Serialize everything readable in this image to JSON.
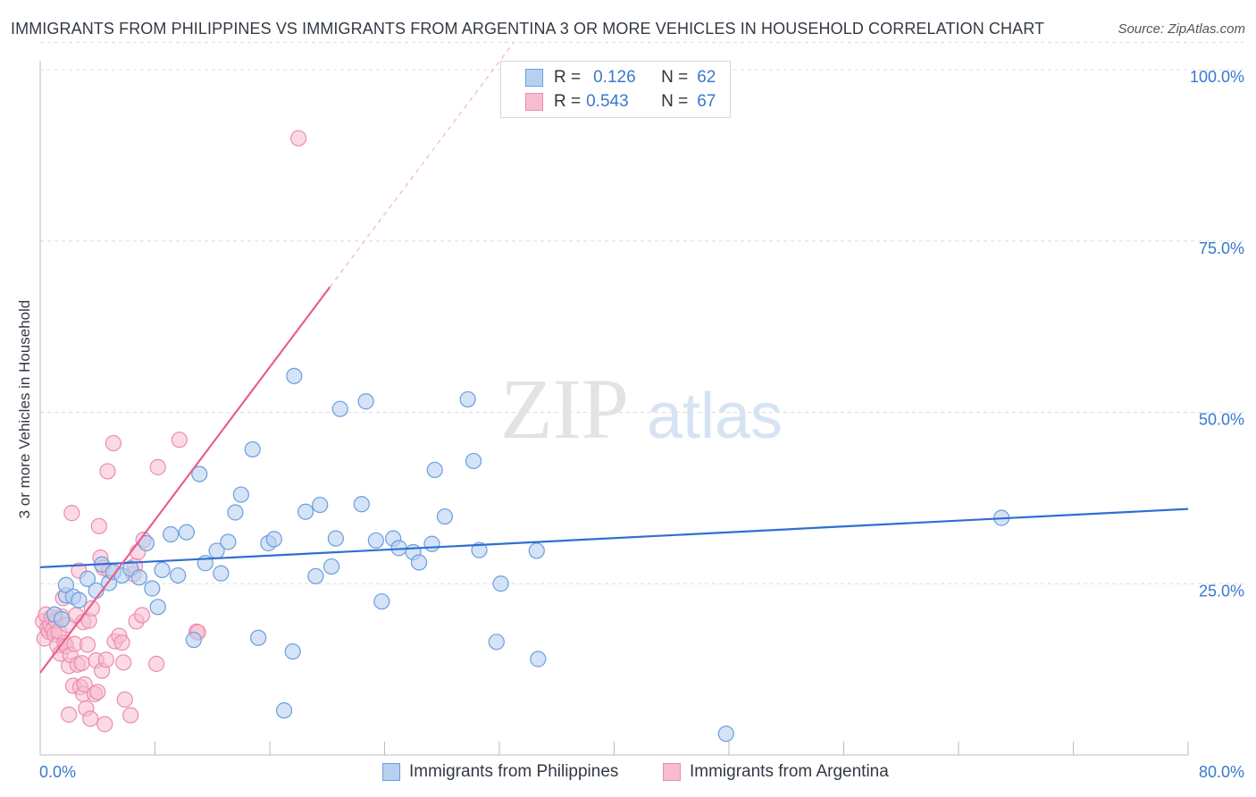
{
  "header": {
    "title": "IMMIGRANTS FROM PHILIPPINES VS IMMIGRANTS FROM ARGENTINA 3 OR MORE VEHICLES IN HOUSEHOLD CORRELATION CHART",
    "source": "Source: ZipAtlas.com"
  },
  "watermark": {
    "zip": "ZIP",
    "atlas": "atlas"
  },
  "legend": {
    "r_label": "R =",
    "n_label": "N =",
    "rows": [
      {
        "r": "0.126",
        "n": "62"
      },
      {
        "r": "0.543",
        "n": "67"
      }
    ]
  },
  "colors": {
    "philippines_fill": "#b8d0f0",
    "philippines_stroke": "#6a9ee0",
    "philippines_line": "#2f6fd0",
    "argentina_fill": "#f7bcd0",
    "argentina_stroke": "#ec8cac",
    "argentina_line": "#e8608c",
    "axis_text": "#3a78cc"
  },
  "chart_data": {
    "type": "scatter",
    "title": "IMMIGRANTS FROM PHILIPPINES VS IMMIGRANTS FROM ARGENTINA 3 OR MORE VEHICLES IN HOUSEHOLD CORRELATION CHART",
    "xlabel": "",
    "ylabel": "3 or more Vehicles in Household",
    "xlim": [
      0,
      80
    ],
    "ylim": [
      0,
      100
    ],
    "x_tick_labels": [
      "0.0%",
      "80.0%"
    ],
    "y_ticks": [
      25,
      50,
      75,
      100
    ],
    "y_tick_labels": [
      "25.0%",
      "50.0%",
      "75.0%",
      "100.0%"
    ],
    "grid": "horizontal dashed",
    "legend_position": "top-center",
    "series": [
      {
        "name": "Immigrants from Philippines",
        "r": 0.126,
        "n": 62,
        "trend": {
          "x0": 0,
          "y0": 27.4,
          "x1": 80,
          "y1": 35.9
        },
        "points": [
          [
            1.0,
            20.5
          ],
          [
            1.5,
            19.8
          ],
          [
            1.8,
            23.3
          ],
          [
            1.8,
            24.8
          ],
          [
            2.3,
            23.1
          ],
          [
            2.7,
            22.6
          ],
          [
            3.3,
            25.7
          ],
          [
            3.9,
            24.0
          ],
          [
            4.3,
            27.8
          ],
          [
            4.8,
            25.1
          ],
          [
            5.1,
            26.7
          ],
          [
            5.7,
            26.2
          ],
          [
            6.3,
            27.2
          ],
          [
            6.9,
            25.9
          ],
          [
            7.4,
            30.9
          ],
          [
            7.8,
            24.3
          ],
          [
            8.2,
            21.6
          ],
          [
            8.5,
            27.0
          ],
          [
            9.1,
            32.2
          ],
          [
            9.6,
            26.2
          ],
          [
            10.2,
            32.5
          ],
          [
            10.7,
            16.8
          ],
          [
            11.1,
            41.0
          ],
          [
            11.5,
            28.0
          ],
          [
            12.3,
            29.8
          ],
          [
            12.6,
            26.5
          ],
          [
            13.1,
            31.1
          ],
          [
            13.6,
            35.4
          ],
          [
            14.0,
            38.0
          ],
          [
            14.8,
            44.6
          ],
          [
            15.2,
            17.1
          ],
          [
            15.9,
            30.9
          ],
          [
            16.3,
            31.5
          ],
          [
            17.0,
            6.5
          ],
          [
            17.6,
            15.1
          ],
          [
            17.7,
            55.3
          ],
          [
            18.5,
            35.5
          ],
          [
            19.2,
            26.1
          ],
          [
            19.5,
            36.5
          ],
          [
            20.3,
            27.5
          ],
          [
            20.6,
            31.6
          ],
          [
            20.9,
            50.5
          ],
          [
            22.4,
            36.6
          ],
          [
            22.7,
            51.6
          ],
          [
            23.4,
            31.3
          ],
          [
            23.8,
            22.4
          ],
          [
            24.6,
            31.6
          ],
          [
            25.0,
            30.2
          ],
          [
            26.0,
            29.6
          ],
          [
            26.4,
            28.1
          ],
          [
            27.3,
            30.8
          ],
          [
            27.5,
            41.6
          ],
          [
            28.2,
            34.8
          ],
          [
            29.8,
            51.9
          ],
          [
            30.2,
            42.9
          ],
          [
            30.6,
            29.9
          ],
          [
            31.8,
            16.5
          ],
          [
            32.1,
            25.0
          ],
          [
            34.6,
            29.8
          ],
          [
            34.7,
            14.0
          ],
          [
            47.8,
            3.1
          ],
          [
            67.0,
            34.6
          ]
        ]
      },
      {
        "name": "Immigrants from Argentina",
        "r": 0.543,
        "n": 67,
        "trend": {
          "x0": 0,
          "y0": 12.0,
          "x1": 80,
          "y1": 235.0
        },
        "trend_solid_until_x": 20.2,
        "points": [
          [
            0.2,
            19.5
          ],
          [
            0.3,
            17.0
          ],
          [
            0.4,
            20.5
          ],
          [
            0.5,
            18.5
          ],
          [
            0.6,
            18.0
          ],
          [
            0.7,
            19.0
          ],
          [
            0.8,
            20.1
          ],
          [
            0.9,
            18.3
          ],
          [
            1.0,
            17.6
          ],
          [
            1.1,
            19.6
          ],
          [
            1.2,
            16.0
          ],
          [
            1.3,
            18.0
          ],
          [
            1.4,
            14.8
          ],
          [
            1.5,
            20.2
          ],
          [
            1.6,
            22.9
          ],
          [
            1.7,
            16.4
          ],
          [
            1.8,
            15.9
          ],
          [
            1.9,
            19.0
          ],
          [
            2.0,
            13.0
          ],
          [
            2.0,
            5.9
          ],
          [
            2.1,
            14.6
          ],
          [
            2.2,
            35.3
          ],
          [
            2.3,
            10.1
          ],
          [
            2.4,
            16.2
          ],
          [
            2.5,
            20.4
          ],
          [
            2.6,
            13.2
          ],
          [
            2.7,
            26.9
          ],
          [
            2.8,
            9.9
          ],
          [
            2.9,
            13.4
          ],
          [
            3.0,
            19.4
          ],
          [
            3.0,
            8.9
          ],
          [
            3.1,
            10.3
          ],
          [
            3.2,
            6.8
          ],
          [
            3.3,
            16.1
          ],
          [
            3.4,
            19.6
          ],
          [
            3.5,
            5.3
          ],
          [
            3.6,
            21.4
          ],
          [
            3.8,
            8.9
          ],
          [
            3.9,
            13.8
          ],
          [
            4.0,
            9.2
          ],
          [
            4.1,
            33.4
          ],
          [
            4.2,
            28.8
          ],
          [
            4.3,
            12.3
          ],
          [
            4.4,
            27.3
          ],
          [
            4.5,
            4.5
          ],
          [
            4.6,
            13.9
          ],
          [
            4.7,
            41.4
          ],
          [
            4.8,
            26.9
          ],
          [
            5.1,
            45.5
          ],
          [
            5.2,
            16.6
          ],
          [
            5.5,
            17.4
          ],
          [
            5.7,
            16.4
          ],
          [
            5.8,
            13.5
          ],
          [
            5.9,
            8.1
          ],
          [
            6.3,
            5.8
          ],
          [
            6.5,
            26.4
          ],
          [
            6.6,
            27.6
          ],
          [
            6.7,
            19.5
          ],
          [
            6.8,
            29.6
          ],
          [
            7.1,
            20.4
          ],
          [
            7.2,
            31.4
          ],
          [
            8.2,
            42.0
          ],
          [
            8.1,
            13.3
          ],
          [
            9.7,
            46.0
          ],
          [
            10.9,
            18.0
          ],
          [
            11.0,
            17.9
          ],
          [
            18.0,
            90.0
          ]
        ]
      }
    ]
  },
  "bottom_legend": [
    {
      "label": "Immigrants from Philippines"
    },
    {
      "label": "Immigrants from Argentina"
    }
  ]
}
